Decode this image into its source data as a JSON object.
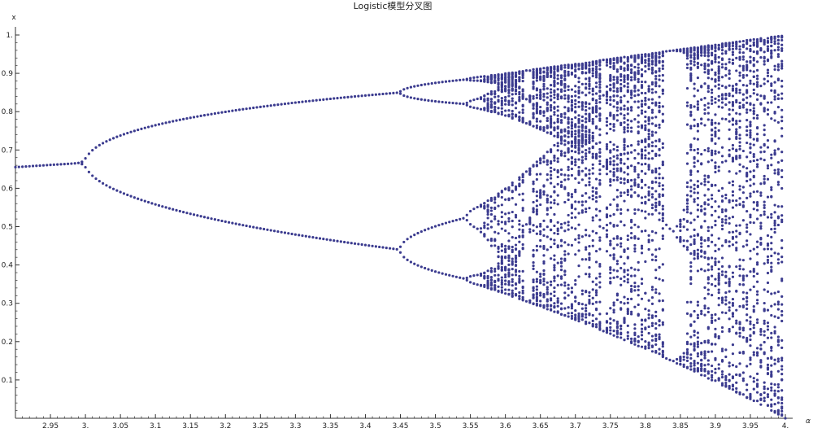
{
  "colors": {
    "points": "#3b3b8f",
    "axis": "#333333",
    "background": "#ffffff"
  },
  "chart_data": {
    "type": "scatter",
    "title": "Logistic模型分叉图",
    "xlabel": "α",
    "ylabel": "x",
    "xlim": [
      2.9,
      4.0
    ],
    "ylim": [
      0,
      1.02
    ],
    "grid": false,
    "legend": "none",
    "x_ticks": [
      2.95,
      3.0,
      3.05,
      3.1,
      3.15,
      3.2,
      3.25,
      3.3,
      3.35,
      3.4,
      3.45,
      3.5,
      3.55,
      3.6,
      3.65,
      3.7,
      3.75,
      3.8,
      3.85,
      3.9,
      3.95,
      4.0
    ],
    "x_tick_labels": [
      "2.95",
      "3.",
      "3.05",
      "3.1",
      "3.15",
      "3.2",
      "3.25",
      "3.3",
      "3.35",
      "3.4",
      "3.45",
      "3.5",
      "3.55",
      "3.6",
      "3.65",
      "3.7",
      "3.75",
      "3.8",
      "3.85",
      "3.9",
      "3.95",
      "4."
    ],
    "y_ticks": [
      0.1,
      0.2,
      0.3,
      0.4,
      0.5,
      0.6,
      0.7,
      0.8,
      0.9,
      1.0
    ],
    "y_tick_labels": [
      "0.1",
      "0.2",
      "0.3",
      "0.4",
      "0.5",
      "0.6",
      "0.7",
      "0.8",
      "0.9",
      "1."
    ],
    "series": [
      {
        "generator": "logistic map x(n+1) = α·x(n)·(1 − x(n)), attractor points for α in [2.9, 4.0]",
        "alpha_start": 2.9,
        "alpha_end": 4.0,
        "alpha_step": 0.005,
        "x0": 0.5,
        "transient_iterations": 400,
        "plotted_iterations": 60
      }
    ]
  }
}
